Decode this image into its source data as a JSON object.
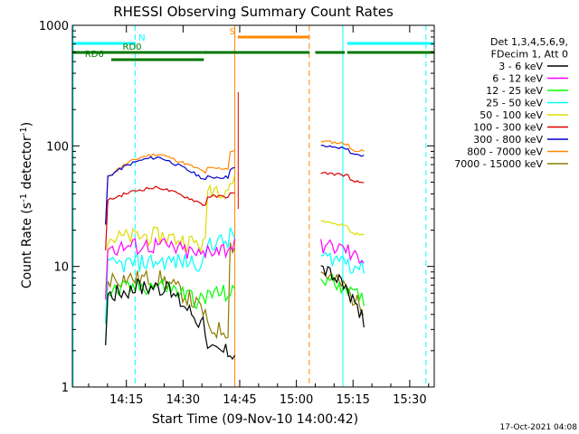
{
  "chart_data": {
    "type": "line",
    "title": "RHESSI Observing Summary Count Rates",
    "xlabel": "Start Time (09-Nov-10 14:00:42)",
    "ylabel_main": "Count Rate (s",
    "ylabel_sup1": "-1",
    "ylabel_mid": " detector",
    "ylabel_sup2": "-1",
    "ylabel_end": ")",
    "y_scale": "log",
    "ylim": [
      1,
      1000
    ],
    "xlim_minutes": [
      0.7,
      96.5
    ],
    "xticks": [
      {
        "label": "14:15",
        "t": 15
      },
      {
        "label": "14:30",
        "t": 30
      },
      {
        "label": "14:45",
        "t": 45
      },
      {
        "label": "15:00",
        "t": 60
      },
      {
        "label": "15:15",
        "t": 75
      },
      {
        "label": "15:30",
        "t": 90
      }
    ],
    "yticks": [
      {
        "label": "1",
        "v": 1
      },
      {
        "label": "10",
        "v": 10
      },
      {
        "label": "100",
        "v": 100
      },
      {
        "label": "1000",
        "v": 1000
      }
    ],
    "legend": {
      "header": [
        "Det 1,3,4,5,6,9,",
        "FDecim 1, Att 0"
      ],
      "entries": [
        {
          "label": "3 - 6 keV",
          "color": "#000000"
        },
        {
          "label": "6 - 12 keV",
          "color": "#ff00ff"
        },
        {
          "label": "12 - 25 keV",
          "color": "#00ff00"
        },
        {
          "label": "25 - 50 keV",
          "color": "#00ffff"
        },
        {
          "label": "50 - 100 keV",
          "color": "#dddd00"
        },
        {
          "label": "100 - 300 keV",
          "color": "#dd0000"
        },
        {
          "label": "300 - 800 keV",
          "color": "#0000cc"
        },
        {
          "label": "800 - 7000 keV",
          "color": "#ff8800"
        },
        {
          "label": "7000 - 15000 keV",
          "color": "#8b7a00"
        }
      ]
    },
    "flags": [
      {
        "label": "N",
        "color": "#00ffff",
        "segments": [
          [
            0.7,
            17.5
          ],
          [
            73.5,
            96.5
          ]
        ]
      },
      {
        "label": "S",
        "color": "#ff8800",
        "segments": [
          [
            44.5,
            63.5
          ]
        ]
      },
      {
        "label": "RD0",
        "color": "#007700",
        "segments": [
          [
            0.7,
            35
          ],
          [
            35,
            63.5
          ],
          [
            65,
            72.8
          ],
          [
            73.5,
            96.5
          ]
        ]
      },
      {
        "label": "RD6",
        "color": "#007700",
        "segments": [
          [
            11,
            35.5
          ]
        ]
      }
    ],
    "vlines": [
      {
        "t": 0.9,
        "color": "#00ffff",
        "style": "solid"
      },
      {
        "t": 17.3,
        "color": "#00ffff",
        "style": "dashed"
      },
      {
        "t": 43.7,
        "color": "#ff8800",
        "style": "solid"
      },
      {
        "t": 63.4,
        "color": "#ff8800",
        "style": "dashed"
      },
      {
        "t": 72.3,
        "color": "#00ffff",
        "style": "solid"
      },
      {
        "t": 94.3,
        "color": "#00ffff",
        "style": "dashed"
      }
    ],
    "series_profiles": [
      {
        "name": "800 - 7000 keV",
        "color": "#ff8800",
        "start": 55,
        "peak": 85,
        "dip": 60,
        "pre": 65,
        "tail": 90,
        "base2": 110,
        "end2": 100
      },
      {
        "name": "300 - 800 keV",
        "color": "#0000cc",
        "start": 55,
        "peak": 80,
        "dip": 52,
        "pre": 55,
        "tail": 65,
        "base2": 100,
        "end2": 92
      },
      {
        "name": "7000 - 15000 keV",
        "color": "#8b7a00",
        "start": 8,
        "peak": 8,
        "dip": 4,
        "pre": 3,
        "tail": 15,
        "base2": 9,
        "end2": 5
      },
      {
        "name": "50 - 100 keV",
        "color": "#dddd00",
        "start": 17,
        "peak": 18,
        "dip": 15,
        "pre": 45,
        "tail": 50,
        "base2": 24,
        "end2": 20
      },
      {
        "name": "100 - 300 keV",
        "color": "#dd0000",
        "start": 35,
        "peak": 45,
        "dip": 32,
        "pre": 38,
        "tail": 40,
        "base2": 60,
        "end2": 55
      },
      {
        "name": "25 - 50 keV",
        "color": "#00ffff",
        "start": 10,
        "peak": 11,
        "dip": 11,
        "pre": 16,
        "tail": 18,
        "base2": 12,
        "end2": 11
      },
      {
        "name": "6 - 12 keV",
        "color": "#ff00ff",
        "start": 14,
        "peak": 15,
        "dip": 12,
        "pre": 14,
        "tail": 15,
        "base2": 15,
        "end2": 13
      },
      {
        "name": "12 - 25 keV",
        "color": "#00ff00",
        "start": 6,
        "peak": 7,
        "dip": 5,
        "pre": 6,
        "tail": 6,
        "base2": 8,
        "end2": 6
      },
      {
        "name": "3 - 6 keV",
        "color": "#000000",
        "start": 6,
        "peak": 7,
        "dip": 3,
        "pre": 2,
        "tail": 2,
        "base2": 10,
        "end2": 4
      }
    ],
    "timestamp": "17-Oct-2021 04:08",
    "grid": false,
    "legend_placement": "right"
  }
}
